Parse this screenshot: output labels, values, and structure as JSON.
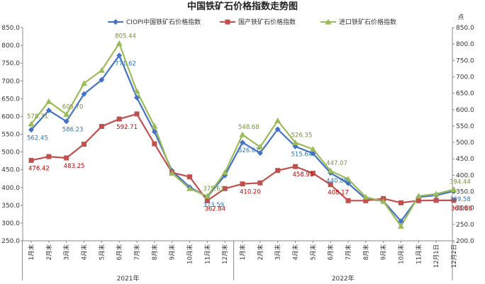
{
  "chart_data": {
    "type": "line",
    "title": "中国铁矿石价格指数走势图",
    "y2label": "点",
    "ylim": [
      250,
      850
    ],
    "ystep": 50,
    "y2lim": [
      200,
      850
    ],
    "y2step": 50,
    "categories": [
      "1月末",
      "2月末",
      "3月末",
      "4月末",
      "5月末",
      "6月末",
      "7月末",
      "8月末",
      "9月末",
      "10月末",
      "11月末",
      "12月末",
      "1月末",
      "2月末",
      "3月末",
      "4月末",
      "5月末",
      "6月末",
      "7月末",
      "8月末",
      "9月末",
      "10月末",
      "11月末",
      "12月1日",
      "12月2日"
    ],
    "year_groups": [
      {
        "label": "2021年",
        "start": 0,
        "end": 11
      },
      {
        "label": "2022年",
        "start": 12,
        "end": 24
      }
    ],
    "series": [
      {
        "name": "CIOPI中国铁矿石价格指数",
        "color": "#4472C4",
        "marker": "diamond",
        "axis": "left",
        "values": [
          562.45,
          617,
          586.23,
          663,
          703,
          771.62,
          653,
          557,
          447,
          401,
          373.59,
          434,
          526.67,
          497,
          564,
          515.64,
          496,
          440.88,
          412,
          368,
          362,
          305,
          373,
          378,
          389.58
        ],
        "labels": {
          "0": "562.45",
          "2": "586.23",
          "5": "771.62",
          "10": "373.59",
          "12": "526.67",
          "15": "515.64",
          "17": "440.88",
          "24": "389.58"
        },
        "label_color": "#2E74B5"
      },
      {
        "name": "国产铁矿石价格指数",
        "color": "#C0504D",
        "marker": "square",
        "axis": "left",
        "values": [
          476.42,
          487,
          483.25,
          522,
          572,
          592.71,
          607,
          523,
          442,
          430,
          362.84,
          397,
          410.2,
          413,
          448,
          458.95,
          440,
          408.17,
          363,
          363,
          369,
          357,
          363,
          363.88,
          363.88
        ],
        "labels": {
          "0": "476.42",
          "2": "483.25",
          "5": "592.71",
          "10": "362.84",
          "12": "410.20",
          "15": "458.95",
          "17": "408.17",
          "24": "363.88"
        },
        "label_color": "#C00000"
      },
      {
        "name": "进口铁矿石价格指数",
        "color": "#9BBB59",
        "marker": "triangle",
        "axis": "left",
        "values": [
          578.71,
          642,
          605.7,
          693,
          730,
          805.44,
          671,
          573,
          440,
          397,
          375.63,
          442,
          548.68,
          514,
          588,
          526.35,
          508,
          447.07,
          424,
          373,
          361,
          291,
          376,
          382,
          394.44
        ],
        "labels": {
          "0": "578.71",
          "2": "605.70",
          "5": "805.44",
          "10": "375.63",
          "12": "548.68",
          "15": "526.35",
          "17": "447.07",
          "24": "394.44"
        },
        "label_color": "#76923C"
      }
    ],
    "grid": false
  }
}
